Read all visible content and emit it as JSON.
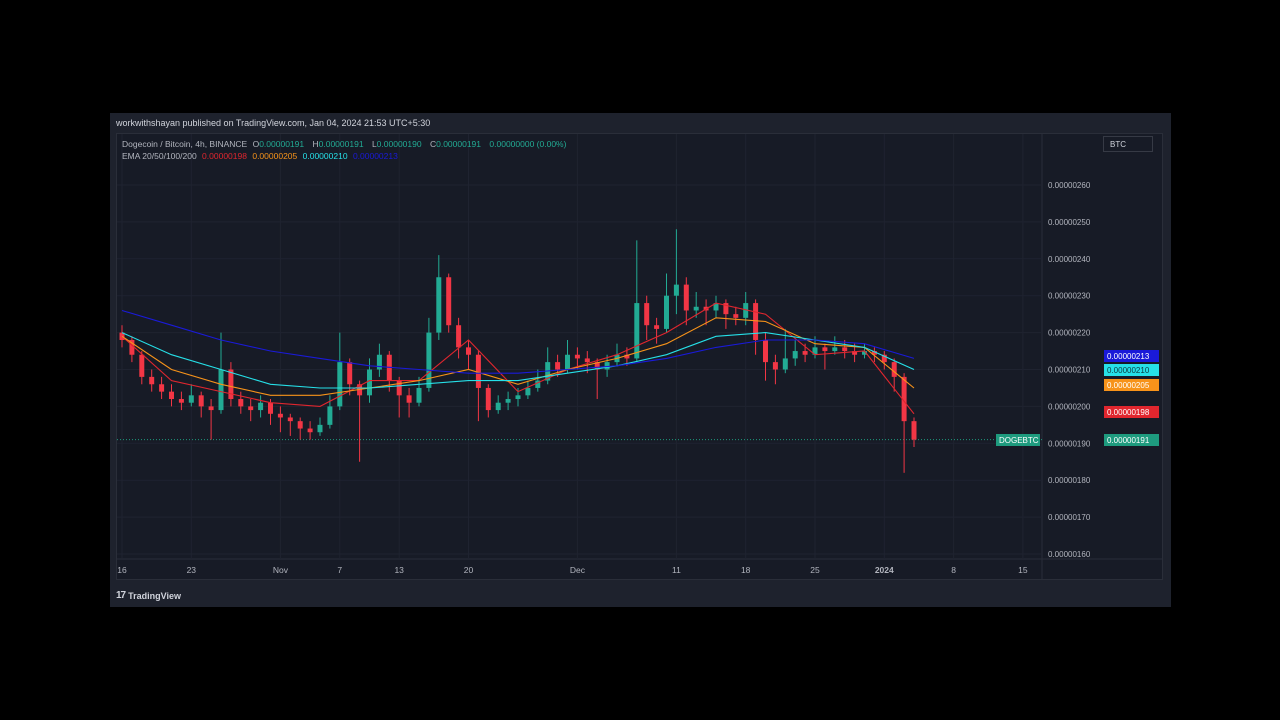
{
  "published": "workwithshayan published on TradingView.com, Jan 04, 2024 21:53 UTC+5:30",
  "legend": {
    "symbol": "Dogecoin / Bitcoin, 4h, BINANCE",
    "o_label": "O",
    "o": "0.00000191",
    "h_label": "H",
    "h": "0.00000191",
    "l_label": "L",
    "l": "0.00000190",
    "c_label": "C",
    "c": "0.00000191",
    "change": "0.00000000 (0.00%)",
    "ema_label": "EMA 20/50/100/200",
    "ema20": "0.00000198",
    "ema50": "0.00000205",
    "ema100": "0.00000210",
    "ema200": "0.00000213"
  },
  "currency_button": "BTC",
  "footer_brand": "TradingView",
  "colors": {
    "up": "#22ab94",
    "down": "#f23645",
    "ema20": "#e0262e",
    "ema50": "#f7931a",
    "ema100": "#26e0e8",
    "ema200": "#1a1ad8",
    "last_price": "#1e9b7e"
  },
  "chart_data": {
    "type": "candlestick",
    "title": "Dogecoin / Bitcoin, 4h, BINANCE",
    "ylim": [
      1.55e-06,
      2.67e-06
    ],
    "y_ticks": [
      "0.00000260",
      "0.00000250",
      "0.00000240",
      "0.00000230",
      "0.00000220",
      "0.00000210",
      "0.00000200",
      "0.00000190",
      "0.00000180",
      "0.00000170",
      "0.00000160"
    ],
    "x_ticks": [
      {
        "label": "16",
        "day": 0
      },
      {
        "label": "23",
        "day": 7
      },
      {
        "label": "Nov",
        "day": 16
      },
      {
        "label": "7",
        "day": 22
      },
      {
        "label": "13",
        "day": 28
      },
      {
        "label": "20",
        "day": 35
      },
      {
        "label": "Dec",
        "day": 46
      },
      {
        "label": "11",
        "day": 56
      },
      {
        "label": "18",
        "day": 63
      },
      {
        "label": "25",
        "day": 70
      },
      {
        "label": "2024",
        "day": 77
      },
      {
        "label": "8",
        "day": 84
      },
      {
        "label": "15",
        "day": 91
      }
    ],
    "candles_ohlc": [
      [
        2.2e-06,
        2.22e-06,
        2.16e-06,
        2.18e-06
      ],
      [
        2.18e-06,
        2.19e-06,
        2.12e-06,
        2.14e-06
      ],
      [
        2.14e-06,
        2.15e-06,
        2.06e-06,
        2.08e-06
      ],
      [
        2.08e-06,
        2.1e-06,
        2.04e-06,
        2.06e-06
      ],
      [
        2.06e-06,
        2.08e-06,
        2.02e-06,
        2.04e-06
      ],
      [
        2.04e-06,
        2.06e-06,
        2e-06,
        2.02e-06
      ],
      [
        2.02e-06,
        2.04e-06,
        1.99e-06,
        2.01e-06
      ],
      [
        2.01e-06,
        2.06e-06,
        2e-06,
        2.03e-06
      ],
      [
        2.03e-06,
        2.04e-06,
        1.97e-06,
        2e-06
      ],
      [
        2e-06,
        2.02e-06,
        1.91e-06,
        1.99e-06
      ],
      [
        1.99e-06,
        2.2e-06,
        1.98e-06,
        2.1e-06
      ],
      [
        2.1e-06,
        2.12e-06,
        2e-06,
        2.02e-06
      ],
      [
        2.02e-06,
        2.04e-06,
        1.98e-06,
        2e-06
      ],
      [
        2e-06,
        2.02e-06,
        1.96e-06,
        1.99e-06
      ],
      [
        1.99e-06,
        2.03e-06,
        1.97e-06,
        2.01e-06
      ],
      [
        2.01e-06,
        2.02e-06,
        1.95e-06,
        1.98e-06
      ],
      [
        1.98e-06,
        2e-06,
        1.93e-06,
        1.97e-06
      ],
      [
        1.97e-06,
        1.98e-06,
        1.92e-06,
        1.96e-06
      ],
      [
        1.96e-06,
        1.97e-06,
        1.91e-06,
        1.94e-06
      ],
      [
        1.94e-06,
        1.96e-06,
        1.91e-06,
        1.93e-06
      ],
      [
        1.93e-06,
        1.97e-06,
        1.92e-06,
        1.95e-06
      ],
      [
        1.95e-06,
        2.03e-06,
        1.94e-06,
        2e-06
      ],
      [
        2e-06,
        2.2e-06,
        1.99e-06,
        2.12e-06
      ],
      [
        2.12e-06,
        2.13e-06,
        2.03e-06,
        2.06e-06
      ],
      [
        2.06e-06,
        2.07e-06,
        1.85e-06,
        2.03e-06
      ],
      [
        2.03e-06,
        2.13e-06,
        2.01e-06,
        2.1e-06
      ],
      [
        2.1e-06,
        2.17e-06,
        2.08e-06,
        2.14e-06
      ],
      [
        2.14e-06,
        2.15e-06,
        2.04e-06,
        2.07e-06
      ],
      [
        2.07e-06,
        2.08e-06,
        1.97e-06,
        2.03e-06
      ],
      [
        2.03e-06,
        2.05e-06,
        1.97e-06,
        2.01e-06
      ],
      [
        2.01e-06,
        2.08e-06,
        2e-06,
        2.05e-06
      ],
      [
        2.05e-06,
        2.24e-06,
        2.04e-06,
        2.2e-06
      ],
      [
        2.2e-06,
        2.41e-06,
        2.18e-06,
        2.35e-06
      ],
      [
        2.35e-06,
        2.36e-06,
        2.2e-06,
        2.22e-06
      ],
      [
        2.22e-06,
        2.24e-06,
        2.13e-06,
        2.16e-06
      ],
      [
        2.16e-06,
        2.18e-06,
        2.1e-06,
        2.14e-06
      ],
      [
        2.14e-06,
        2.15e-06,
        1.96e-06,
        2.05e-06
      ],
      [
        2.05e-06,
        2.06e-06,
        1.97e-06,
        1.99e-06
      ],
      [
        1.99e-06,
        2.03e-06,
        1.98e-06,
        2.01e-06
      ],
      [
        2.01e-06,
        2.04e-06,
        1.99e-06,
        2.02e-06
      ],
      [
        2.02e-06,
        2.05e-06,
        2e-06,
        2.03e-06
      ],
      [
        2.03e-06,
        2.07e-06,
        2.02e-06,
        2.05e-06
      ],
      [
        2.05e-06,
        2.1e-06,
        2.04e-06,
        2.07e-06
      ],
      [
        2.07e-06,
        2.16e-06,
        2.06e-06,
        2.12e-06
      ],
      [
        2.12e-06,
        2.14e-06,
        2.08e-06,
        2.1e-06
      ],
      [
        2.1e-06,
        2.18e-06,
        2.09e-06,
        2.14e-06
      ],
      [
        2.14e-06,
        2.16e-06,
        2.1e-06,
        2.13e-06
      ],
      [
        2.13e-06,
        2.15e-06,
        2.09e-06,
        2.12e-06
      ],
      [
        2.12e-06,
        2.13e-06,
        2.02e-06,
        2.1e-06
      ],
      [
        2.1e-06,
        2.14e-06,
        2.08e-06,
        2.12e-06
      ],
      [
        2.12e-06,
        2.17e-06,
        2.11e-06,
        2.14e-06
      ],
      [
        2.14e-06,
        2.16e-06,
        2.11e-06,
        2.13e-06
      ],
      [
        2.13e-06,
        2.45e-06,
        2.12e-06,
        2.28e-06
      ],
      [
        2.28e-06,
        2.3e-06,
        2.18e-06,
        2.22e-06
      ],
      [
        2.22e-06,
        2.24e-06,
        2.17e-06,
        2.21e-06
      ],
      [
        2.21e-06,
        2.36e-06,
        2.2e-06,
        2.3e-06
      ],
      [
        2.3e-06,
        2.48e-06,
        2.25e-06,
        2.33e-06
      ],
      [
        2.33e-06,
        2.35e-06,
        2.22e-06,
        2.26e-06
      ],
      [
        2.26e-06,
        2.31e-06,
        2.24e-06,
        2.27e-06
      ],
      [
        2.27e-06,
        2.29e-06,
        2.22e-06,
        2.26e-06
      ],
      [
        2.26e-06,
        2.3e-06,
        2.24e-06,
        2.28e-06
      ],
      [
        2.28e-06,
        2.29e-06,
        2.21e-06,
        2.25e-06
      ],
      [
        2.25e-06,
        2.27e-06,
        2.22e-06,
        2.24e-06
      ],
      [
        2.24e-06,
        2.31e-06,
        2.22e-06,
        2.28e-06
      ],
      [
        2.28e-06,
        2.29e-06,
        2.14e-06,
        2.18e-06
      ],
      [
        2.18e-06,
        2.2e-06,
        2.07e-06,
        2.12e-06
      ],
      [
        2.12e-06,
        2.14e-06,
        2.06e-06,
        2.1e-06
      ],
      [
        2.1e-06,
        2.21e-06,
        2.09e-06,
        2.13e-06
      ],
      [
        2.13e-06,
        2.18e-06,
        2.11e-06,
        2.15e-06
      ],
      [
        2.15e-06,
        2.17e-06,
        2.12e-06,
        2.14e-06
      ],
      [
        2.14e-06,
        2.19e-06,
        2.13e-06,
        2.16e-06
      ],
      [
        2.16e-06,
        2.17e-06,
        2.1e-06,
        2.15e-06
      ],
      [
        2.15e-06,
        2.19e-06,
        2.14e-06,
        2.16e-06
      ],
      [
        2.16e-06,
        2.18e-06,
        2.13e-06,
        2.15e-06
      ],
      [
        2.15e-06,
        2.17e-06,
        2.12e-06,
        2.14e-06
      ],
      [
        2.14e-06,
        2.17e-06,
        2.13e-06,
        2.15e-06
      ],
      [
        2.15e-06,
        2.16e-06,
        2.12e-06,
        2.14e-06
      ],
      [
        2.14e-06,
        2.15e-06,
        2.1e-06,
        2.12e-06
      ],
      [
        2.12e-06,
        2.13e-06,
        2.04e-06,
        2.08e-06
      ],
      [
        2.08e-06,
        2.09e-06,
        1.82e-06,
        1.96e-06
      ],
      [
        1.96e-06,
        1.97e-06,
        1.89e-06,
        1.91e-06
      ]
    ],
    "ema_sample_days": [
      0,
      5,
      10,
      15,
      20,
      25,
      30,
      35,
      40,
      45,
      50,
      55,
      60,
      65,
      70,
      75,
      80
    ],
    "series": [
      {
        "name": "EMA 20",
        "values": [
          2.19e-06,
          2.07e-06,
          2.04e-06,
          2.01e-06,
          2e-06,
          2.07e-06,
          2.07e-06,
          2.18e-06,
          2.04e-06,
          2.1e-06,
          2.14e-06,
          2.2e-06,
          2.28e-06,
          2.25e-06,
          2.14e-06,
          2.15e-06,
          1.98e-06
        ]
      },
      {
        "name": "EMA 50",
        "values": [
          2.19e-06,
          2.1e-06,
          2.06e-06,
          2.03e-06,
          2.03e-06,
          2.05e-06,
          2.07e-06,
          2.1e-06,
          2.06e-06,
          2.1e-06,
          2.13e-06,
          2.17e-06,
          2.24e-06,
          2.23e-06,
          2.17e-06,
          2.16e-06,
          2.05e-06
        ]
      },
      {
        "name": "EMA 100",
        "values": [
          2.2e-06,
          2.14e-06,
          2.1e-06,
          2.06e-06,
          2.05e-06,
          2.05e-06,
          2.06e-06,
          2.07e-06,
          2.07e-06,
          2.09e-06,
          2.11e-06,
          2.14e-06,
          2.19e-06,
          2.2e-06,
          2.18e-06,
          2.16e-06,
          2.1e-06
        ]
      },
      {
        "name": "EMA 200",
        "values": [
          2.26e-06,
          2.22e-06,
          2.18e-06,
          2.15e-06,
          2.13e-06,
          2.11e-06,
          2.1e-06,
          2.09e-06,
          2.09e-06,
          2.1e-06,
          2.11e-06,
          2.13e-06,
          2.16e-06,
          2.18e-06,
          2.18e-06,
          2.17e-06,
          2.13e-06
        ]
      }
    ],
    "price_labels": {
      "symbol": "DOGEBTC",
      "last": "0.00000191",
      "ema200": "0.00000213",
      "ema100": "0.00000210",
      "ema50": "0.00000205",
      "ema20": "0.00000198"
    },
    "grid": true
  }
}
